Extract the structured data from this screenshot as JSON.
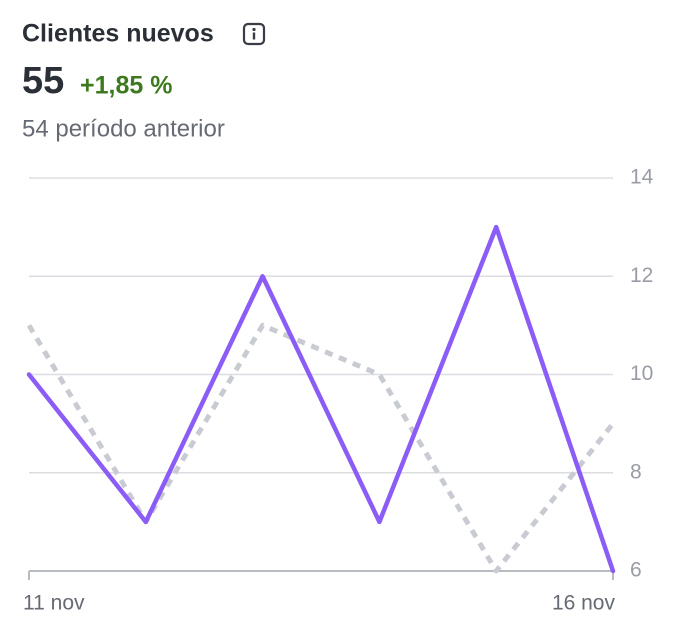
{
  "header": {
    "title": "Clientes nuevos",
    "value": "55",
    "change": "+1,85 %",
    "comparison": "54 período anterior"
  },
  "chart_data": {
    "type": "line",
    "categories": [
      "11 nov",
      null,
      null,
      null,
      null,
      "16 nov"
    ],
    "series": [
      {
        "color": "#c9cbd3",
        "dashed": true,
        "values": [
          11,
          7,
          11,
          10,
          6,
          9
        ]
      },
      {
        "color": "#8b5cf6",
        "dashed": false,
        "values": [
          10,
          7,
          12,
          7,
          13,
          6
        ]
      }
    ],
    "ylim": [
      6,
      14
    ],
    "yticks": [
      6,
      8,
      10,
      12,
      14
    ],
    "grid": true,
    "y_axis_side": "right"
  }
}
